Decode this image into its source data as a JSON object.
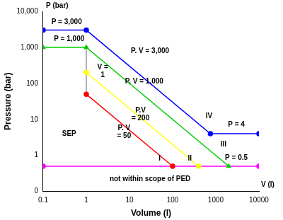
{
  "chart_data": {
    "type": "line",
    "xlabel": "Volume (l)",
    "ylabel": "Pressure (bar)",
    "x_axis_end_label": "V (l)",
    "y_axis_end_label": "P (bar)",
    "log": true,
    "grid": false,
    "xlim": [
      0.1,
      10000
    ],
    "xticks": [
      0.1,
      1,
      10,
      100,
      1000,
      10000
    ],
    "ylim": [
      0.1,
      10000
    ],
    "yticks": [
      {
        "value": 0.1,
        "label": "0"
      },
      1,
      10,
      100,
      {
        "value": 1000,
        "label": "1,000"
      },
      {
        "value": 10000,
        "label": "10,000"
      }
    ],
    "series": [
      {
        "color": "#0000ff",
        "marker": "circle",
        "x": [
          0.1,
          1,
          750,
          10000
        ],
        "values": [
          3000,
          3000,
          4,
          4
        ]
      },
      {
        "color": "#00cc00",
        "marker": "triangle",
        "x": [
          0.1,
          1,
          2000
        ],
        "values": [
          1000,
          1000,
          0.5
        ]
      },
      {
        "color": "#ffff00",
        "marker": "circle",
        "x": [
          1,
          400
        ],
        "values": [
          200,
          0.5
        ]
      },
      {
        "color": "#ff0000",
        "marker": "circle",
        "x": [
          1,
          100
        ],
        "values": [
          50,
          0.5
        ]
      },
      {
        "color": "#999999",
        "marker": "none",
        "x": [
          1,
          1
        ],
        "values": [
          1000,
          50
        ]
      },
      {
        "color": "#ff00ff",
        "marker": "circle",
        "x": [
          0.1,
          10000
        ],
        "values": [
          0.5,
          0.5
        ]
      }
    ],
    "annotations": [
      {
        "text": "P = 3,000",
        "x": 0.35,
        "y": 5000
      },
      {
        "text": "P = 1,000",
        "x": 0.4,
        "y": 1700
      },
      {
        "text": "P. V = 3,000",
        "x": 30,
        "y": 800
      },
      {
        "text": "P. V = 1,000",
        "x": 22,
        "y": 110
      },
      {
        "text": "V =\n1",
        "x": 2.4,
        "y": 220
      },
      {
        "text": "P.V\n= 200",
        "x": 18,
        "y": 14
      },
      {
        "text": "P. V\n= 50",
        "x": 7.5,
        "y": 4.5
      },
      {
        "text": "SEP",
        "x": 0.4,
        "y": 4
      },
      {
        "text": "I",
        "x": 50,
        "y": 0.8
      },
      {
        "text": "II",
        "x": 250,
        "y": 0.8
      },
      {
        "text": "III",
        "x": 1500,
        "y": 2
      },
      {
        "text": "IV",
        "x": 700,
        "y": 12
      },
      {
        "text": "P = 4",
        "x": 3000,
        "y": 7
      },
      {
        "text": "P = 0.5",
        "x": 3000,
        "y": 0.85
      },
      {
        "text": "not within scope of PED",
        "x": 30,
        "y": 0.22
      }
    ]
  }
}
